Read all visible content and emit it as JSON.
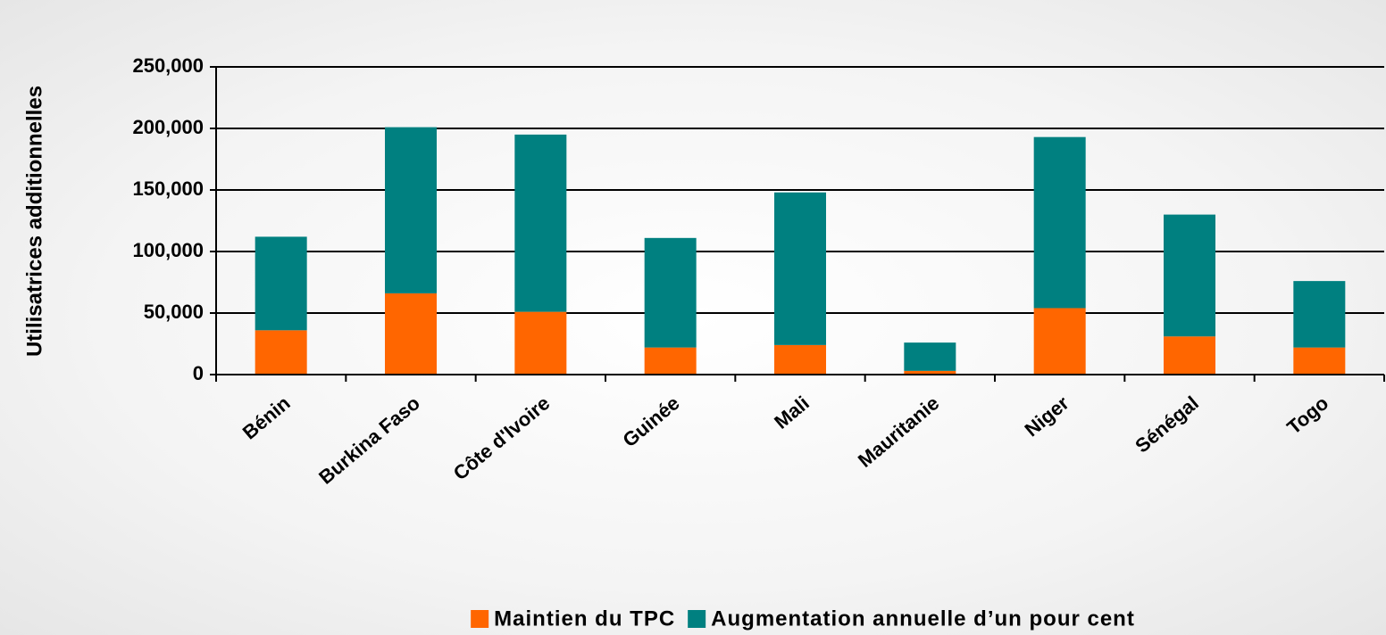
{
  "chart_data": {
    "type": "stacked_bar",
    "y_label": "Utilisatrices additionnelles",
    "categories": [
      "Bénin",
      "Burkina Faso",
      "Côte d'Ivoire",
      "Guinée",
      "Mali",
      "Mauritanie",
      "Niger",
      "Sénégal",
      "Togo"
    ],
    "series": [
      {
        "name": "Maintien du TPC",
        "color": "#ff6600",
        "values": [
          36000,
          66000,
          51000,
          22000,
          24000,
          3000,
          54000,
          31000,
          22000
        ]
      },
      {
        "name": "Augmentation annuelle d’un pour cent",
        "color": "#008080",
        "values": [
          76000,
          135000,
          144000,
          89000,
          124000,
          23000,
          139000,
          99000,
          54000
        ]
      }
    ],
    "ylim": [
      0,
      250000
    ],
    "yticks": [
      0,
      {
        "value": 50000,
        "label": "50,000"
      },
      {
        "value": 100000,
        "label": "100,000"
      },
      {
        "value": 150000,
        "label": "150,000"
      },
      {
        "value": 200000,
        "label": "200,000"
      },
      {
        "value": 250000,
        "label": "250,000"
      }
    ],
    "grid": true,
    "legend": "bottom"
  }
}
